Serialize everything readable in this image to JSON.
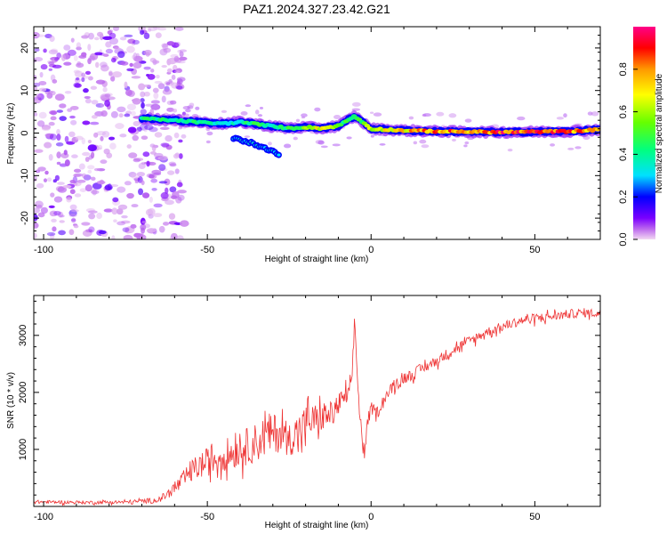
{
  "title": "PAZ1.2024.327.23.42.G21",
  "chart_data": [
    {
      "type": "heatmap",
      "xlabel": "Height of straight line (km)",
      "ylabel": "Frequency (Hz)",
      "xlim": [
        -103,
        70
      ],
      "ylim": [
        -25,
        25
      ],
      "xticks": [
        -100,
        -50,
        0,
        50
      ],
      "yticks": [
        -20,
        -10,
        0,
        10,
        20
      ],
      "xtick_labels": [
        "-100",
        "-50",
        "0",
        "50"
      ],
      "ytick_labels": [
        "-20",
        "-10",
        "0",
        "10",
        "20"
      ],
      "colorbar": {
        "label": "Normalized spectral amplitude",
        "range": [
          0,
          1
        ],
        "ticks": [
          0.0,
          0.2,
          0.4,
          0.6,
          0.8
        ],
        "tick_labels": [
          "0.0",
          "0.2",
          "0.4",
          "0.6",
          "0.8"
        ],
        "colors": [
          "#f2d8f2",
          "#bb66ee",
          "#7a00ff",
          "#0000ff",
          "#00e0ff",
          "#00ff80",
          "#66ff00",
          "#ffff00",
          "#ff9900",
          "#ff0000",
          "#ff0088"
        ]
      },
      "ridge": {
        "name": "dominant frequency track",
        "x": [
          -70,
          -65,
          -60,
          -55,
          -50,
          -45,
          -40,
          -35,
          -30,
          -25,
          -20,
          -15,
          -10,
          -5,
          0,
          10,
          20,
          30,
          40,
          50,
          60,
          70
        ],
        "y": [
          3.5,
          3.2,
          3.0,
          2.7,
          2.4,
          2.2,
          2.6,
          2.1,
          1.6,
          1.1,
          1.4,
          1.1,
          1.7,
          4.0,
          1.0,
          0.6,
          0.4,
          0.3,
          0.2,
          0.3,
          0.4,
          0.8
        ],
        "amplitude": [
          0.45,
          0.45,
          0.45,
          0.45,
          0.45,
          0.35,
          0.4,
          0.55,
          0.4,
          0.5,
          0.6,
          0.75,
          0.55,
          0.45,
          0.65,
          0.8,
          0.88,
          0.92,
          0.95,
          0.94,
          0.92,
          0.8
        ]
      },
      "branch": {
        "x": [
          -42,
          -38,
          -34,
          -30,
          -28
        ],
        "y": [
          -1.0,
          -2.0,
          -3.2,
          -4.4,
          -5.0
        ]
      },
      "noise_region_x": [
        -103,
        -63
      ]
    },
    {
      "type": "line",
      "xlabel": "Height of straight line (km)",
      "ylabel": "SNR (10 * v/v)",
      "xlim": [
        -103,
        70
      ],
      "ylim": [
        0,
        3700
      ],
      "xticks": [
        -100,
        -50,
        0,
        50
      ],
      "yticks": [
        1000,
        2000,
        3000
      ],
      "xtick_labels": [
        "-100",
        "-50",
        "0",
        "50"
      ],
      "ytick_labels": [
        "1000",
        "2000",
        "3000"
      ],
      "color": "#ee3333",
      "series": [
        {
          "x": [
            -103,
            -95,
            -85,
            -75,
            -65,
            -62,
            -58,
            -55,
            -50,
            -45,
            -40,
            -35,
            -32,
            -28,
            -25,
            -22,
            -20,
            -18,
            -15,
            -12,
            -10,
            -8,
            -6,
            -5,
            -4,
            -3,
            -2,
            -1,
            0,
            2,
            4,
            6,
            8,
            10,
            12,
            15,
            20,
            25,
            30,
            35,
            40,
            45,
            50,
            55,
            60,
            65,
            70
          ],
          "y": [
            80,
            75,
            70,
            75,
            110,
            220,
            420,
            620,
            780,
            900,
            1000,
            1120,
            1250,
            1300,
            1180,
            1320,
            1460,
            1520,
            1560,
            1620,
            1780,
            1900,
            2050,
            3300,
            2050,
            1350,
            900,
            1500,
            1720,
            1650,
            1900,
            2050,
            2150,
            2250,
            2300,
            2400,
            2550,
            2750,
            2900,
            3050,
            3150,
            3250,
            3300,
            3330,
            3370,
            3400,
            3380
          ],
          "noise": [
            60,
            60,
            60,
            60,
            100,
            160,
            300,
            400,
            500,
            560,
            620,
            700,
            760,
            700,
            600,
            700,
            650,
            560,
            500,
            450,
            420,
            380,
            330,
            300,
            300,
            300,
            250,
            230,
            220,
            210,
            200,
            200,
            200,
            200,
            200,
            200,
            190,
            180,
            180,
            170,
            170,
            170,
            170,
            170,
            160,
            160,
            150
          ]
        }
      ]
    }
  ]
}
